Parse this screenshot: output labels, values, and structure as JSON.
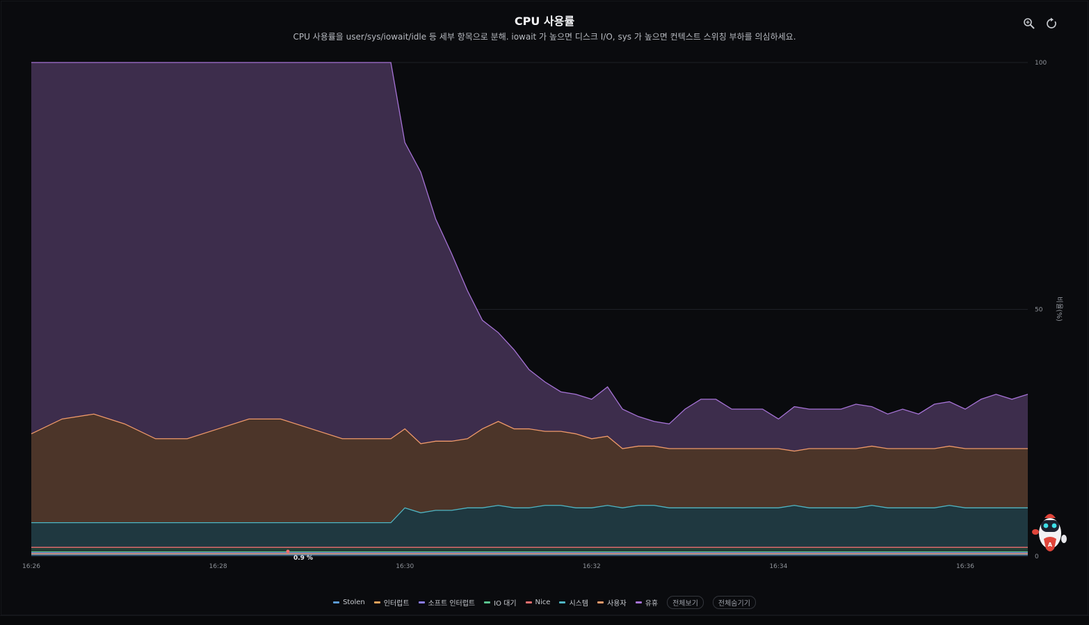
{
  "header": {
    "title": "CPU 사용률",
    "subtitle": "CPU 사용률을 user/sys/iowait/idle 등 세부 항목으로 분해. iowait 가 높으면 디스크 I/O, sys 가 높으면 컨텍스트 스위칭 부하를 의심하세요."
  },
  "toolbar": {
    "zoom_icon": "zoom-icon",
    "reset_icon": "reset-icon"
  },
  "legend": {
    "items": [
      {
        "label": "Stolen",
        "color": "#5b9bd5"
      },
      {
        "label": "인터럽트",
        "color": "#e8a25a"
      },
      {
        "label": "소프트 인터럽트",
        "color": "#8b7cf0"
      },
      {
        "label": "IO 대기",
        "color": "#59c48f"
      },
      {
        "label": "Nice",
        "color": "#ef6f6f"
      },
      {
        "label": "시스템",
        "color": "#4fb6c4"
      },
      {
        "label": "사용자",
        "color": "#f09a6a"
      },
      {
        "label": "유휴",
        "color": "#a673d6"
      }
    ],
    "show_all": "전체보기",
    "hide_all": "전체숨기기"
  },
  "tooltip_value": "0.9 %",
  "chart_data": {
    "type": "area",
    "stacked": true,
    "ylabel": "비율(%)",
    "ylim": [
      0,
      100
    ],
    "y_ticks": [
      0,
      50,
      100
    ],
    "x_ticks": [
      "16:26",
      "16:28",
      "16:30",
      "16:32",
      "16:34",
      "16:36"
    ],
    "x_range_minutes": [
      0,
      10.67
    ],
    "x": [
      0,
      0.33,
      0.67,
      1,
      1.33,
      1.67,
      2,
      2.33,
      2.67,
      3,
      3.33,
      3.67,
      3.8,
      3.85,
      4,
      4.17,
      4.33,
      4.5,
      4.67,
      4.83,
      5,
      5.17,
      5.33,
      5.5,
      5.67,
      5.83,
      6,
      6.17,
      6.33,
      6.5,
      6.67,
      6.83,
      7,
      7.17,
      7.33,
      7.5,
      7.67,
      7.83,
      8,
      8.17,
      8.33,
      8.5,
      8.67,
      8.83,
      9,
      9.17,
      9.33,
      9.5,
      9.67,
      9.83,
      10,
      10.17,
      10.33,
      10.5,
      10.67
    ],
    "series": [
      {
        "name": "Stolen",
        "color": "#5b9bd5",
        "values": [
          0.3,
          0.3,
          0.3,
          0.3,
          0.3,
          0.3,
          0.3,
          0.3,
          0.3,
          0.3,
          0.3,
          0.3,
          0.3,
          0.3,
          0.3,
          0.3,
          0.3,
          0.3,
          0.3,
          0.3,
          0.3,
          0.3,
          0.3,
          0.3,
          0.3,
          0.3,
          0.3,
          0.3,
          0.3,
          0.3,
          0.3,
          0.3,
          0.3,
          0.3,
          0.3,
          0.3,
          0.3,
          0.3,
          0.3,
          0.3,
          0.3,
          0.3,
          0.3,
          0.3,
          0.3,
          0.3,
          0.3,
          0.3,
          0.3,
          0.3,
          0.3,
          0.3,
          0.3,
          0.3,
          0.3
        ]
      },
      {
        "name": "인터럽트",
        "color": "#e8a25a",
        "values": [
          0.2,
          0.2,
          0.2,
          0.2,
          0.2,
          0.2,
          0.2,
          0.2,
          0.2,
          0.2,
          0.2,
          0.2,
          0.2,
          0.2,
          0.2,
          0.2,
          0.2,
          0.2,
          0.2,
          0.2,
          0.2,
          0.2,
          0.2,
          0.2,
          0.2,
          0.2,
          0.2,
          0.2,
          0.2,
          0.2,
          0.2,
          0.2,
          0.2,
          0.2,
          0.2,
          0.2,
          0.2,
          0.2,
          0.2,
          0.2,
          0.2,
          0.2,
          0.2,
          0.2,
          0.2,
          0.2,
          0.2,
          0.2,
          0.2,
          0.2,
          0.2,
          0.2,
          0.2,
          0.2,
          0.2
        ]
      },
      {
        "name": "소프트 인터럽트",
        "color": "#8b7cf0",
        "values": [
          0.2,
          0.2,
          0.2,
          0.2,
          0.2,
          0.2,
          0.2,
          0.2,
          0.2,
          0.2,
          0.2,
          0.2,
          0.2,
          0.2,
          0.2,
          0.2,
          0.2,
          0.2,
          0.2,
          0.2,
          0.2,
          0.2,
          0.2,
          0.2,
          0.2,
          0.2,
          0.2,
          0.2,
          0.2,
          0.2,
          0.2,
          0.2,
          0.2,
          0.2,
          0.2,
          0.2,
          0.2,
          0.2,
          0.2,
          0.2,
          0.2,
          0.2,
          0.2,
          0.2,
          0.2,
          0.2,
          0.2,
          0.2,
          0.2,
          0.2,
          0.2,
          0.2,
          0.2,
          0.2,
          0.2
        ]
      },
      {
        "name": "IO 대기",
        "color": "#59c48f",
        "values": [
          0.2,
          0.2,
          0.2,
          0.2,
          0.2,
          0.2,
          0.2,
          0.2,
          0.2,
          0.2,
          0.2,
          0.2,
          0.2,
          0.2,
          0.2,
          0.2,
          0.2,
          0.2,
          0.2,
          0.2,
          0.2,
          0.2,
          0.2,
          0.2,
          0.2,
          0.2,
          0.2,
          0.2,
          0.2,
          0.2,
          0.2,
          0.2,
          0.2,
          0.2,
          0.2,
          0.2,
          0.2,
          0.2,
          0.2,
          0.2,
          0.2,
          0.2,
          0.2,
          0.2,
          0.2,
          0.2,
          0.2,
          0.2,
          0.2,
          0.2,
          0.2,
          0.2,
          0.2,
          0.2,
          0.2
        ]
      },
      {
        "name": "Nice",
        "color": "#ef6f6f",
        "values": [
          0.9,
          0.9,
          0.9,
          0.9,
          0.9,
          0.9,
          0.9,
          0.9,
          0.9,
          0.9,
          0.9,
          0.9,
          0.9,
          0.9,
          0.9,
          0.9,
          0.9,
          0.9,
          0.9,
          0.9,
          0.9,
          0.9,
          0.9,
          0.9,
          0.9,
          0.9,
          0.9,
          0.9,
          0.9,
          0.9,
          0.9,
          0.9,
          0.9,
          0.9,
          0.9,
          0.9,
          0.9,
          0.9,
          0.9,
          0.9,
          0.9,
          0.9,
          0.9,
          0.9,
          0.9,
          0.9,
          0.9,
          0.9,
          0.9,
          0.9,
          0.9,
          0.9,
          0.9,
          0.9,
          0.9
        ]
      },
      {
        "name": "시스템",
        "color": "#4fb6c4",
        "values": [
          5,
          5,
          5,
          5,
          5,
          5,
          5,
          5,
          5,
          5,
          5,
          5,
          5,
          5,
          8,
          7,
          7.5,
          7.5,
          8,
          8,
          8.5,
          8,
          8,
          8.5,
          8.5,
          8,
          8,
          8.5,
          8,
          8.5,
          8.5,
          8,
          8,
          8,
          8,
          8,
          8,
          8,
          8,
          8.5,
          8,
          8,
          8,
          8,
          8.5,
          8,
          8,
          8,
          8,
          8.5,
          8,
          8,
          8,
          8,
          8
        ]
      },
      {
        "name": "사용자",
        "color": "#f09a6a",
        "values": [
          18,
          21,
          22,
          20,
          17,
          17,
          19,
          21,
          21,
          19,
          17,
          17,
          17,
          17,
          16,
          14,
          14,
          14,
          14,
          16,
          17,
          16,
          16,
          15,
          15,
          15,
          14,
          14,
          12,
          12,
          12,
          12,
          12,
          12,
          12,
          12,
          12,
          12,
          12,
          11,
          12,
          12,
          12,
          12,
          12,
          12,
          12,
          12,
          12,
          12,
          12,
          12,
          12,
          12,
          12
        ]
      },
      {
        "name": "유휴",
        "color": "#a673d6",
        "values": [
          75.2,
          72.2,
          71.2,
          73.2,
          76.2,
          76.2,
          74.2,
          72.2,
          72.2,
          74.2,
          76.2,
          76.2,
          76.2,
          76.2,
          58,
          55,
          45,
          38,
          30,
          22,
          18,
          16,
          12,
          10,
          8,
          8,
          8,
          10,
          8,
          6,
          5,
          5,
          8,
          10,
          10,
          8,
          8,
          8,
          6,
          9,
          8,
          8,
          8,
          9,
          8,
          7,
          8,
          7,
          9,
          9,
          8,
          10,
          11,
          10,
          11
        ]
      }
    ]
  }
}
